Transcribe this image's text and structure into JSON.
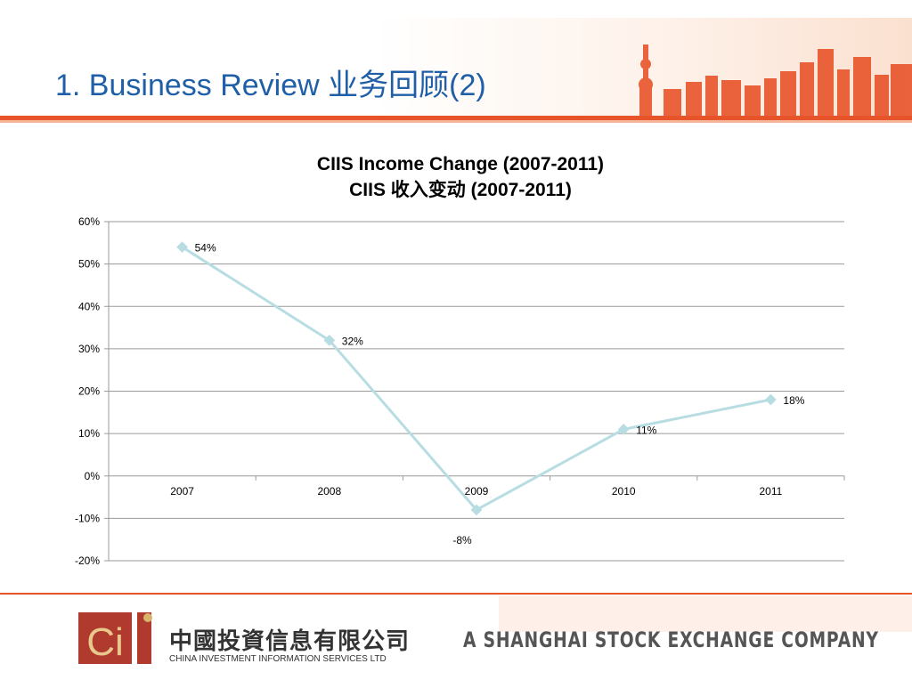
{
  "slide": {
    "title": "1. Business Review 业务回顾(2)"
  },
  "footer": {
    "logo_mark": "Ci",
    "logo_cn": "中國投資信息有限公司",
    "logo_en": "CHINA INVESTMENT INFORMATION SERVICES LTD",
    "tagline": "A SHANGHAI STOCK EXCHANGE COMPANY"
  },
  "colors": {
    "title_blue": "#1f5fa8",
    "accent_orange": "#e8542a",
    "line": "#b7dde3",
    "grid": "#9a9a9a"
  },
  "chart_data": {
    "type": "line",
    "title": "CIIS Income Change (2007-2011)",
    "subtitle": "CIIS 收入变动 (2007-2011)",
    "categories": [
      "2007",
      "2008",
      "2009",
      "2010",
      "2011"
    ],
    "series": [
      {
        "values": [
          54,
          32,
          -8,
          11,
          18
        ],
        "labels": [
          "54%",
          "32%",
          "-8%",
          "11%",
          "18%"
        ]
      }
    ],
    "ylim": [
      -20,
      60
    ],
    "yticks": [
      60,
      50,
      40,
      30,
      20,
      10,
      0,
      -10,
      -20
    ],
    "ytick_labels": [
      "60%",
      "50%",
      "40%",
      "30%",
      "20%",
      "10%",
      "0%",
      "-10%",
      "-20%"
    ],
    "grid": true,
    "legend": "none"
  }
}
